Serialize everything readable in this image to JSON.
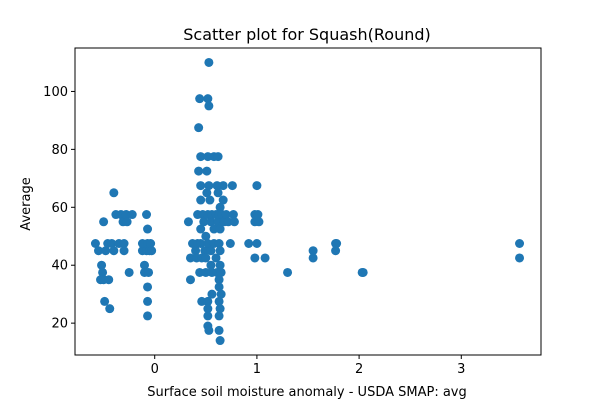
{
  "chart_data": {
    "type": "scatter",
    "title": "Scatter plot for Squash(Round)",
    "xlabel": "Surface soil moisture anomaly  - USDA SMAP: avg",
    "ylabel": "Average",
    "xlim": [
      -0.78,
      3.78
    ],
    "ylim": [
      9,
      115
    ],
    "xticks": [
      0,
      1,
      2,
      3
    ],
    "yticks": [
      20,
      40,
      60,
      80,
      100
    ],
    "grid": false,
    "marker_color": "#1f77b4",
    "points": [
      [
        -0.58,
        47.5
      ],
      [
        -0.55,
        45
      ],
      [
        -0.53,
        35
      ],
      [
        -0.52,
        40
      ],
      [
        -0.51,
        37.5
      ],
      [
        -0.5,
        35
      ],
      [
        -0.5,
        55
      ],
      [
        -0.49,
        27.5
      ],
      [
        -0.48,
        45
      ],
      [
        -0.46,
        47.5
      ],
      [
        -0.45,
        35
      ],
      [
        -0.44,
        25
      ],
      [
        -0.42,
        47.5
      ],
      [
        -0.4,
        45
      ],
      [
        -0.4,
        65
      ],
      [
        -0.38,
        57.5
      ],
      [
        -0.35,
        47.5
      ],
      [
        -0.33,
        57.5
      ],
      [
        -0.31,
        55
      ],
      [
        -0.3,
        45
      ],
      [
        -0.3,
        47.5
      ],
      [
        -0.28,
        57.5
      ],
      [
        -0.27,
        55
      ],
      [
        -0.25,
        37.5
      ],
      [
        -0.22,
        57.5
      ],
      [
        -0.12,
        45
      ],
      [
        -0.12,
        47.5
      ],
      [
        -0.1,
        40
      ],
      [
        -0.1,
        37.5
      ],
      [
        -0.08,
        45
      ],
      [
        -0.08,
        57.5
      ],
      [
        -0.07,
        52.5
      ],
      [
        -0.07,
        47.5
      ],
      [
        -0.07,
        32.5
      ],
      [
        -0.07,
        27.5
      ],
      [
        -0.07,
        22.5
      ],
      [
        -0.06,
        37.5
      ],
      [
        -0.05,
        45
      ],
      [
        -0.04,
        47.5
      ],
      [
        -0.03,
        45
      ],
      [
        0.33,
        55
      ],
      [
        0.35,
        42.5
      ],
      [
        0.35,
        35
      ],
      [
        0.37,
        47.5
      ],
      [
        0.4,
        45
      ],
      [
        0.41,
        42.5
      ],
      [
        0.42,
        47.5
      ],
      [
        0.42,
        57.5
      ],
      [
        0.43,
        72.5
      ],
      [
        0.43,
        87.5
      ],
      [
        0.44,
        97.5
      ],
      [
        0.44,
        37.5
      ],
      [
        0.45,
        77.5
      ],
      [
        0.45,
        67.5
      ],
      [
        0.45,
        62.5
      ],
      [
        0.45,
        52.5
      ],
      [
        0.45,
        47.5
      ],
      [
        0.46,
        42.5
      ],
      [
        0.46,
        27.5
      ],
      [
        0.47,
        57.5
      ],
      [
        0.48,
        55
      ],
      [
        0.49,
        45
      ],
      [
        0.5,
        50
      ],
      [
        0.5,
        42.5
      ],
      [
        0.5,
        37.5
      ],
      [
        0.51,
        72.5
      ],
      [
        0.51,
        65
      ],
      [
        0.52,
        97.5
      ],
      [
        0.52,
        77.5
      ],
      [
        0.52,
        57.5
      ],
      [
        0.52,
        47.5
      ],
      [
        0.52,
        27.5
      ],
      [
        0.52,
        25
      ],
      [
        0.52,
        22.5
      ],
      [
        0.52,
        19
      ],
      [
        0.53,
        110
      ],
      [
        0.53,
        95
      ],
      [
        0.53,
        67.5
      ],
      [
        0.53,
        17.5
      ],
      [
        0.54,
        62.5
      ],
      [
        0.55,
        55
      ],
      [
        0.55,
        45
      ],
      [
        0.55,
        40
      ],
      [
        0.56,
        57.5
      ],
      [
        0.56,
        37.5
      ],
      [
        0.56,
        30
      ],
      [
        0.58,
        77.5
      ],
      [
        0.58,
        52.5
      ],
      [
        0.58,
        47.5
      ],
      [
        0.6,
        42.5
      ],
      [
        0.6,
        57.5
      ],
      [
        0.61,
        67.5
      ],
      [
        0.61,
        37.5
      ],
      [
        0.62,
        77.5
      ],
      [
        0.62,
        65
      ],
      [
        0.62,
        55
      ],
      [
        0.63,
        57.5
      ],
      [
        0.63,
        47.5
      ],
      [
        0.63,
        35
      ],
      [
        0.63,
        32.5
      ],
      [
        0.63,
        27.5
      ],
      [
        0.63,
        22.5
      ],
      [
        0.63,
        17.5
      ],
      [
        0.64,
        14
      ],
      [
        0.64,
        60
      ],
      [
        0.64,
        52.5
      ],
      [
        0.64,
        45
      ],
      [
        0.64,
        40
      ],
      [
        0.64,
        25
      ],
      [
        0.65,
        37.5
      ],
      [
        0.65,
        30
      ],
      [
        0.66,
        57.5
      ],
      [
        0.67,
        67.5
      ],
      [
        0.67,
        62.5
      ],
      [
        0.68,
        55
      ],
      [
        0.7,
        57.5
      ],
      [
        0.72,
        55
      ],
      [
        0.74,
        47.5
      ],
      [
        0.76,
        67.5
      ],
      [
        0.77,
        57.5
      ],
      [
        0.78,
        55
      ],
      [
        0.92,
        47.5
      ],
      [
        0.98,
        42.5
      ],
      [
        0.98,
        55
      ],
      [
        0.98,
        57.5
      ],
      [
        1.0,
        67.5
      ],
      [
        1.0,
        47.5
      ],
      [
        1.01,
        57.5
      ],
      [
        1.02,
        55
      ],
      [
        1.08,
        42.5
      ],
      [
        1.3,
        37.5
      ],
      [
        1.55,
        45
      ],
      [
        1.55,
        42.5
      ],
      [
        1.77,
        47.5
      ],
      [
        1.77,
        45
      ],
      [
        1.78,
        47.5
      ],
      [
        2.03,
        37.5
      ],
      [
        2.04,
        37.5
      ],
      [
        3.57,
        47.5
      ],
      [
        3.57,
        42.5
      ]
    ]
  }
}
